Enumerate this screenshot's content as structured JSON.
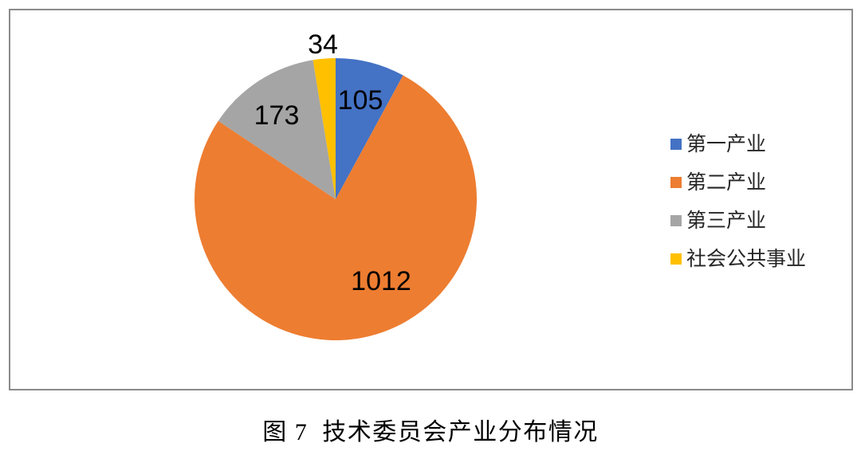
{
  "figure": {
    "caption": "图 7  技术委员会产业分布情况"
  },
  "chart_data": {
    "type": "pie",
    "categories": [
      "第一产业",
      "第二产业",
      "第三产业",
      "社会公共事业"
    ],
    "values": [
      105,
      1012,
      173,
      34
    ],
    "colors": [
      "#4472C4",
      "#ED7D31",
      "#A5A5A5",
      "#FFC000"
    ],
    "data_labels": [
      "105",
      "1012",
      "173",
      "34"
    ],
    "start_angle_deg": 0,
    "direction": "clockwise",
    "legend_position": "right",
    "frame_border_color": "#8a8a8a"
  },
  "legend": {
    "items": [
      {
        "label": "第一产业",
        "color": "#4472C4"
      },
      {
        "label": "第二产业",
        "color": "#ED7D31"
      },
      {
        "label": "第三产业",
        "color": "#A5A5A5"
      },
      {
        "label": "社会公共事业",
        "color": "#FFC000"
      }
    ]
  }
}
